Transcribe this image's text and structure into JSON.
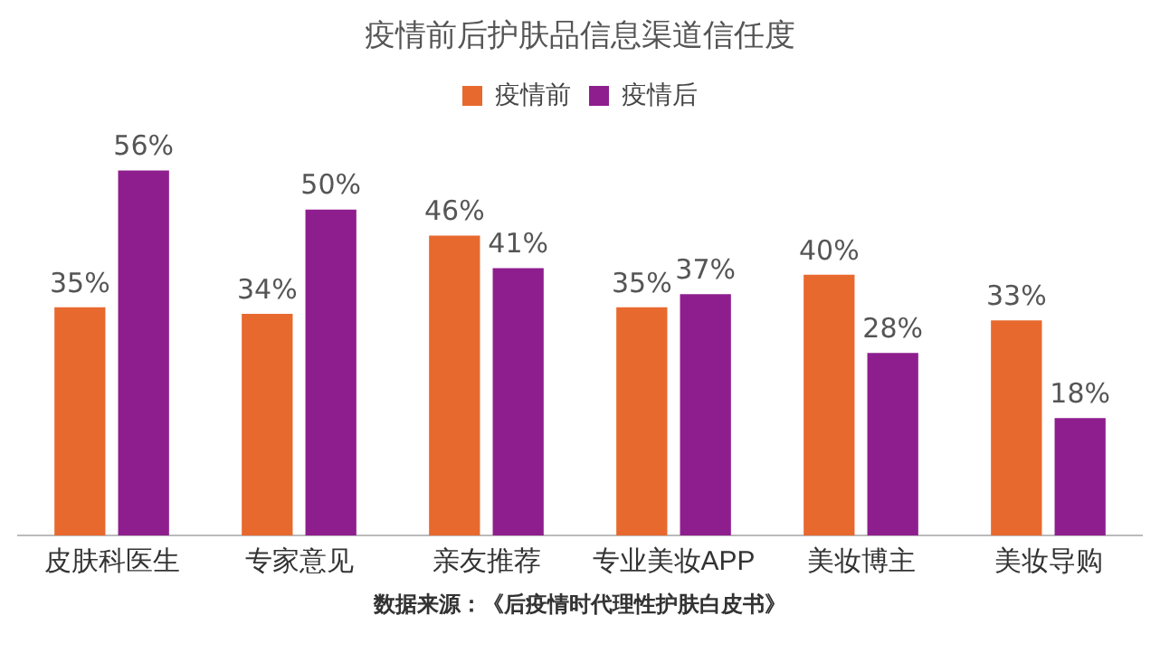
{
  "chart_data": {
    "type": "bar",
    "title": "疫情前后护肤品信息渠道信任度",
    "categories": [
      "皮肤科医生",
      "专家意见",
      "亲友推荐",
      "专业美妆APP",
      "美妆博主",
      "美妆导购"
    ],
    "series": [
      {
        "name": "疫情前",
        "color": "#e8692e",
        "values": [
          35,
          34,
          46,
          35,
          40,
          33
        ],
        "value_labels": [
          "35%",
          "34%",
          "46%",
          "35%",
          "40%",
          "33%"
        ]
      },
      {
        "name": "疫情后",
        "color": "#8e1e8e",
        "values": [
          56,
          50,
          41,
          37,
          28,
          18
        ],
        "value_labels": [
          "56%",
          "50%",
          "41%",
          "37%",
          "28%",
          "18%"
        ]
      }
    ],
    "legend": "top",
    "grid": false,
    "annotations": [
      "数据来源：《后疫情时代理性护肤白皮书》"
    ]
  }
}
